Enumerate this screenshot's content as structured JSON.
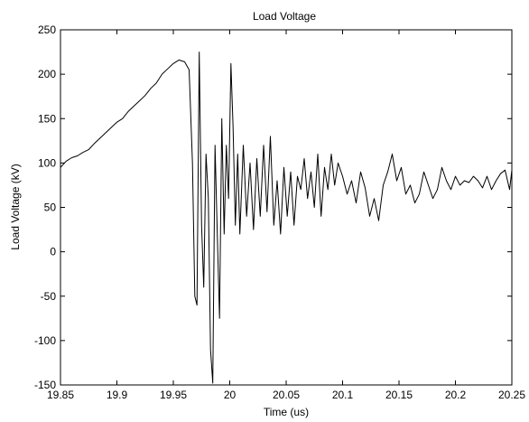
{
  "chart_data": {
    "type": "line",
    "title": "Load Voltage",
    "xlabel": "Time (us)",
    "ylabel": "Load Voltage (kV)",
    "xlim": [
      19.85,
      20.25
    ],
    "ylim": [
      -150,
      250
    ],
    "xticks": [
      "19.85",
      "19.9",
      "19.95",
      "20",
      "20.05",
      "20.1",
      "20.15",
      "20.2",
      "20.25"
    ],
    "yticks": [
      "-150",
      "-100",
      "-50",
      "0",
      "50",
      "100",
      "150",
      "200",
      "250"
    ],
    "grid": false,
    "line_color": "#000000",
    "series": [
      {
        "x": [
          19.85,
          19.855,
          19.86,
          19.865,
          19.87,
          19.875,
          19.88,
          19.885,
          19.89,
          19.895,
          19.9,
          19.905,
          19.91,
          19.915,
          19.92,
          19.925,
          19.93,
          19.935,
          19.94,
          19.945,
          19.95,
          19.955,
          19.96,
          19.964,
          19.967,
          19.969,
          19.971,
          19.973,
          19.975,
          19.977,
          19.979,
          19.981,
          19.983,
          19.985,
          19.987,
          19.989,
          19.991,
          19.993,
          19.995,
          19.997,
          19.999,
          20.001,
          20.003,
          20.005,
          20.007,
          20.009,
          20.012,
          20.015,
          20.018,
          20.021,
          20.024,
          20.027,
          20.03,
          20.033,
          20.036,
          20.039,
          20.042,
          20.045,
          20.048,
          20.051,
          20.054,
          20.057,
          20.06,
          20.063,
          20.066,
          20.069,
          20.072,
          20.075,
          20.078,
          20.081,
          20.084,
          20.087,
          20.09,
          20.093,
          20.096,
          20.1,
          20.104,
          20.108,
          20.112,
          20.116,
          20.12,
          20.124,
          20.128,
          20.132,
          20.136,
          20.14,
          20.144,
          20.148,
          20.152,
          20.156,
          20.16,
          20.164,
          20.168,
          20.172,
          20.176,
          20.18,
          20.184,
          20.188,
          20.192,
          20.196,
          20.2,
          20.204,
          20.208,
          20.212,
          20.216,
          20.22,
          20.224,
          20.228,
          20.232,
          20.236,
          20.24,
          20.244,
          20.248,
          20.25
        ],
        "y": [
          95,
          102,
          106,
          108,
          112,
          115,
          122,
          128,
          134,
          140,
          146,
          150,
          158,
          164,
          170,
          176,
          184,
          190,
          200,
          206,
          212,
          216,
          214,
          205,
          100,
          -50,
          -60,
          225,
          30,
          -40,
          110,
          60,
          -110,
          -148,
          120,
          20,
          -75,
          150,
          20,
          120,
          60,
          212,
          140,
          30,
          110,
          20,
          120,
          40,
          100,
          25,
          105,
          40,
          120,
          45,
          130,
          30,
          80,
          20,
          95,
          40,
          90,
          30,
          85,
          70,
          105,
          60,
          90,
          50,
          110,
          40,
          95,
          70,
          110,
          75,
          100,
          85,
          65,
          80,
          55,
          90,
          72,
          40,
          60,
          35,
          75,
          90,
          110,
          80,
          95,
          65,
          75,
          55,
          65,
          90,
          75,
          60,
          70,
          95,
          80,
          70,
          85,
          75,
          80,
          78,
          85,
          80,
          72,
          85,
          70,
          80,
          88,
          92,
          70,
          92
        ]
      }
    ]
  }
}
